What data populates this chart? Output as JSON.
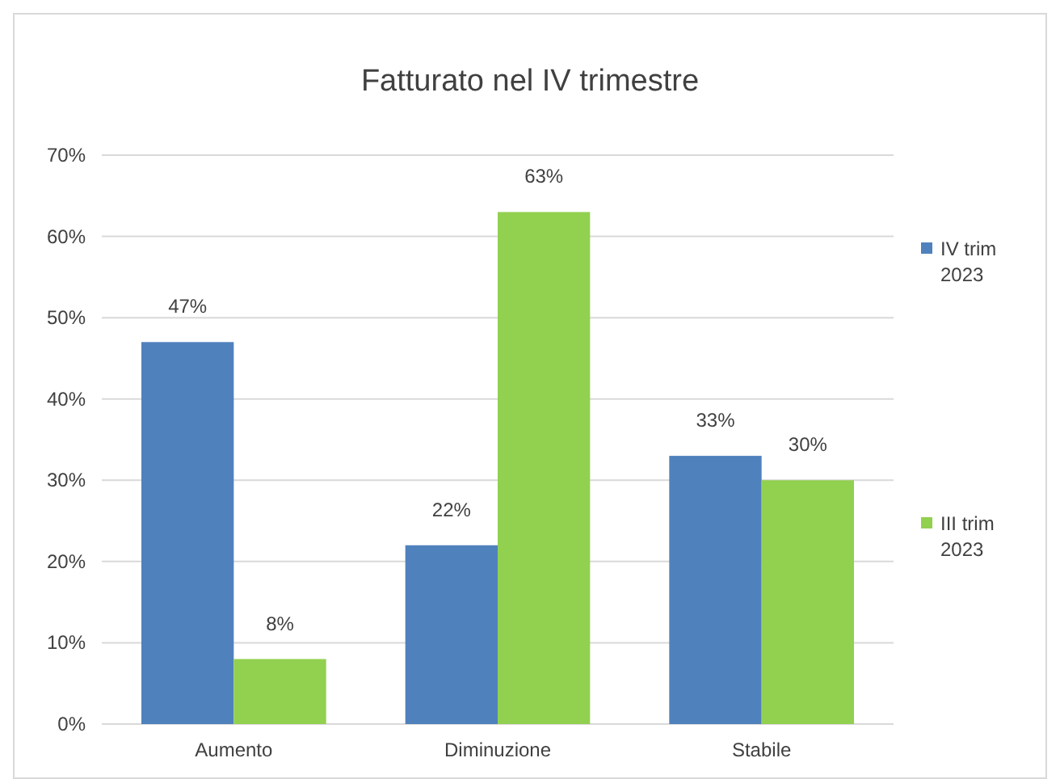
{
  "chart_data": {
    "type": "bar",
    "title": "Fatturato nel IV trimestre",
    "categories": [
      "Aumento",
      "Diminuzione",
      "Stabile"
    ],
    "series": [
      {
        "name": "IV trim 2023",
        "color": "#4f81bd",
        "values": [
          47,
          22,
          33
        ],
        "value_labels": [
          "47%",
          "22%",
          "33%"
        ]
      },
      {
        "name": "III trim 2023",
        "color": "#92d050",
        "values": [
          8,
          63,
          30
        ],
        "value_labels": [
          "8%",
          "63%",
          "30%"
        ]
      }
    ],
    "ylim": [
      0,
      70
    ],
    "yticks": [
      {
        "value": 0,
        "label": "0%"
      },
      {
        "value": 10,
        "label": "10%"
      },
      {
        "value": 20,
        "label": "20%"
      },
      {
        "value": 30,
        "label": "30%"
      },
      {
        "value": 40,
        "label": "40%"
      },
      {
        "value": 50,
        "label": "50%"
      },
      {
        "value": 60,
        "label": "60%"
      },
      {
        "value": 70,
        "label": "70%"
      }
    ],
    "grid": "y",
    "legend": "right"
  }
}
